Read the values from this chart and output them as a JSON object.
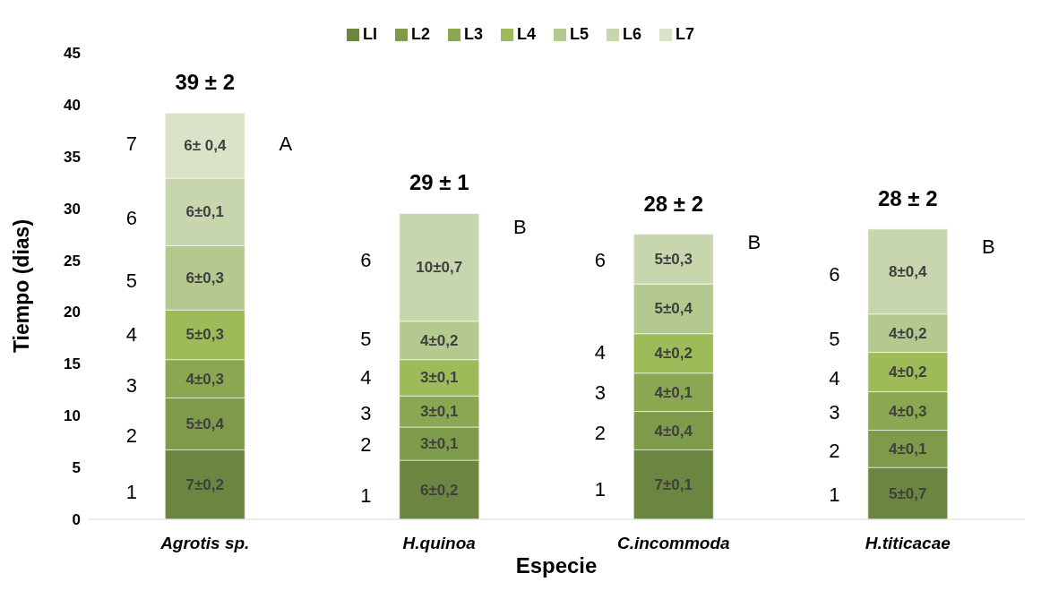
{
  "chart_data": {
    "type": "bar",
    "stacked": true,
    "xlabel": "Especie",
    "ylabel": "Tiempo  (dias)",
    "categories": [
      "Agrotis sp.",
      "H.quinoa",
      "C.incommoda",
      "H.titicacae"
    ],
    "ylim": [
      0,
      45
    ],
    "yticks": [
      0,
      5,
      10,
      15,
      20,
      25,
      30,
      35,
      40,
      45
    ],
    "grid": false,
    "legend": "top",
    "series": [
      {
        "name": "LI",
        "color": "#6b8640",
        "values": [
          6.7,
          5.7,
          6.7,
          5.0
        ],
        "value_labels": [
          "7±0,2",
          "6±0,2",
          "7±0,1",
          "5±0,7"
        ]
      },
      {
        "name": "L2",
        "color": "#7e9a4b",
        "values": [
          5.0,
          3.2,
          3.7,
          3.6
        ],
        "value_labels": [
          "5±0,4",
          "3±0,1",
          "4±0,4",
          "4±0,1"
        ]
      },
      {
        "name": "L3",
        "color": "#8aa852",
        "values": [
          3.7,
          3.0,
          3.7,
          3.7
        ],
        "value_labels": [
          "4±0,3",
          "3±0,1",
          "4±0,1",
          "4±0,3"
        ]
      },
      {
        "name": "L4",
        "color": "#9dbb58",
        "values": [
          4.8,
          3.5,
          3.8,
          3.8
        ],
        "value_labels": [
          "5±0,3",
          "3±0,1",
          "4±0,2",
          "4±0,2"
        ]
      },
      {
        "name": "L5",
        "color": "#b3c98e",
        "values": [
          6.2,
          3.7,
          4.8,
          3.7
        ],
        "value_labels": [
          "6±0,3",
          "4±0,2",
          "5±0,4",
          "4±0,2"
        ]
      },
      {
        "name": "L6",
        "color": "#c8d6ad",
        "values": [
          6.5,
          10.4,
          4.8,
          8.2
        ],
        "value_labels": [
          "6±0,1",
          "10±0,7",
          "5±0,3",
          "8±0,4"
        ]
      },
      {
        "name": "L7",
        "color": "#dae3c8",
        "values": [
          6.3,
          null,
          null,
          null
        ],
        "value_labels": [
          "6± 0,4",
          null,
          null,
          null
        ]
      }
    ],
    "totals": [
      "39 ± 2",
      "29 ± 1",
      "28 ± 2",
      "28 ± 2"
    ],
    "annotations": [
      "1",
      "2",
      "3",
      "4",
      "5",
      "6",
      "7",
      "A",
      "1",
      "2",
      "3",
      "4",
      "5",
      "6",
      "B",
      "1",
      "2",
      "3",
      "4",
      "6",
      "B",
      "1",
      "2",
      "3",
      "4",
      "5",
      "6",
      "B"
    ]
  }
}
